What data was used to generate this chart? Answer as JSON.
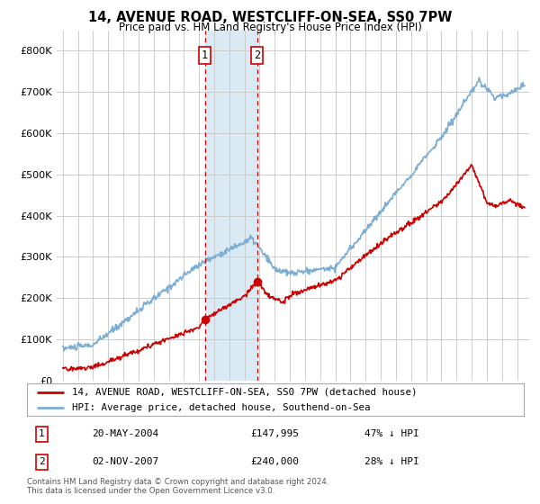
{
  "title": "14, AVENUE ROAD, WESTCLIFF-ON-SEA, SS0 7PW",
  "subtitle": "Price paid vs. HM Land Registry's House Price Index (HPI)",
  "ylim": [
    0,
    850000
  ],
  "yticks": [
    0,
    100000,
    200000,
    300000,
    400000,
    500000,
    600000,
    700000,
    800000
  ],
  "ytick_labels": [
    "£0",
    "£100K",
    "£200K",
    "£300K",
    "£400K",
    "£500K",
    "£600K",
    "£700K",
    "£800K"
  ],
  "sale1_date": 2004.38,
  "sale1_price": 147995,
  "sale2_date": 2007.84,
  "sale2_price": 240000,
  "red_line_color": "#cc0000",
  "blue_line_color": "#7aadd4",
  "shade_color": "#daeaf5",
  "vline_color": "#cc0000",
  "legend_label_red": "14, AVENUE ROAD, WESTCLIFF-ON-SEA, SS0 7PW (detached house)",
  "legend_label_blue": "HPI: Average price, detached house, Southend-on-Sea",
  "table_row1": [
    "1",
    "20-MAY-2004",
    "£147,995",
    "47% ↓ HPI"
  ],
  "table_row2": [
    "2",
    "02-NOV-2007",
    "£240,000",
    "28% ↓ HPI"
  ],
  "footnote": "Contains HM Land Registry data © Crown copyright and database right 2024.\nThis data is licensed under the Open Government Licence v3.0.",
  "background_color": "#ffffff",
  "grid_color": "#cccccc"
}
